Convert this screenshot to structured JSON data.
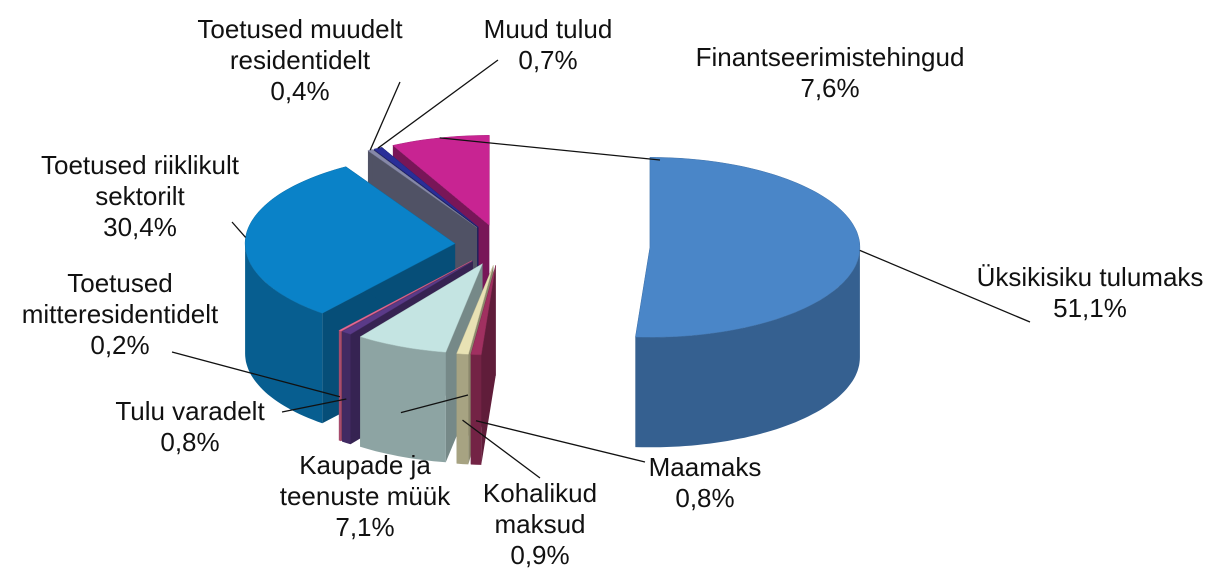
{
  "chart_data": {
    "type": "pie3d",
    "categories": [
      "Üksikisiku tulumaks",
      "Maamaks",
      "Kohalikud maksud",
      "Kaupade ja teenuste müük",
      "Tulu varadelt",
      "Toetused mitteresidentidelt",
      "Toetused riiklikult sektorilt",
      "Toetused muudelt residentidelt",
      "Muud tulud",
      "Finantseerimistehingud"
    ],
    "values": [
      51.1,
      0.8,
      0.9,
      7.1,
      0.8,
      0.2,
      30.4,
      0.4,
      0.7,
      7.6
    ],
    "value_labels": [
      "51,1%",
      "0,8%",
      "0,9%",
      "7,1%",
      "0,8%",
      "0,2%",
      "30,4%",
      "0,4%",
      "0,7%",
      "7,6%"
    ],
    "colors": [
      "#4a86c8",
      "#a03060",
      "#e8e2b4",
      "#c4e4e2",
      "#5a3a88",
      "#e86a98",
      "#0a82c8",
      "#8688a8",
      "#2a2e98",
      "#c82492"
    ]
  }
}
